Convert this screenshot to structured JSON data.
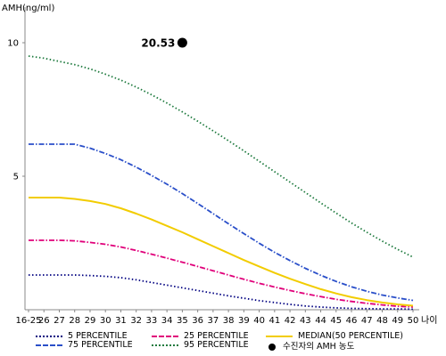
{
  "chart_data": {
    "type": "line",
    "ylabel": "AMH(ng/ml)",
    "xlabel": "나이",
    "categories": [
      "16-25",
      "26",
      "27",
      "28",
      "29",
      "30",
      "31",
      "32",
      "33",
      "34",
      "35",
      "36",
      "37",
      "38",
      "39",
      "40",
      "41",
      "42",
      "43",
      "44",
      "45",
      "46",
      "47",
      "48",
      "49",
      "50"
    ],
    "y_ticks": [
      "10",
      "5"
    ],
    "ylim": [
      0,
      11
    ],
    "grid": false,
    "legend_position": "bottom",
    "series": [
      {
        "name": "5 PERCENTILE",
        "color": "#000080",
        "dash": "dotted",
        "values": [
          1.3,
          1.3,
          1.3,
          1.3,
          1.28,
          1.25,
          1.2,
          1.12,
          1.02,
          0.92,
          0.82,
          0.72,
          0.62,
          0.52,
          0.43,
          0.34,
          0.27,
          0.2,
          0.14,
          0.1,
          0.07,
          0.05,
          0.04,
          0.03,
          0.03,
          0.02
        ]
      },
      {
        "name": "25 PERCENTILE",
        "color": "#e0007a",
        "dash": "dashdot",
        "values": [
          2.6,
          2.6,
          2.6,
          2.58,
          2.52,
          2.45,
          2.35,
          2.22,
          2.08,
          1.93,
          1.78,
          1.62,
          1.46,
          1.3,
          1.14,
          0.99,
          0.85,
          0.72,
          0.6,
          0.49,
          0.39,
          0.31,
          0.24,
          0.18,
          0.13,
          0.1
        ]
      },
      {
        "name": "MEDIAN(50 PERCENTILE)",
        "color": "#f2cc00",
        "dash": "solid",
        "values": [
          4.2,
          4.2,
          4.2,
          4.15,
          4.07,
          3.96,
          3.8,
          3.6,
          3.38,
          3.14,
          2.9,
          2.64,
          2.38,
          2.12,
          1.86,
          1.62,
          1.38,
          1.16,
          0.96,
          0.77,
          0.61,
          0.47,
          0.36,
          0.27,
          0.2,
          0.15
        ]
      },
      {
        "name": "75 PERCENTILE",
        "color": "#2a4fc9",
        "dash": "dashdot",
        "values": [
          6.2,
          6.2,
          6.2,
          6.2,
          6.05,
          5.85,
          5.62,
          5.34,
          5.03,
          4.7,
          4.35,
          3.98,
          3.6,
          3.22,
          2.85,
          2.49,
          2.15,
          1.84,
          1.55,
          1.29,
          1.06,
          0.86,
          0.69,
          0.55,
          0.44,
          0.35
        ]
      },
      {
        "name": "95 PERCENTILE",
        "color": "#1e7a3e",
        "dash": "dotted",
        "values": [
          9.5,
          9.42,
          9.3,
          9.18,
          9.02,
          8.82,
          8.6,
          8.34,
          8.05,
          7.74,
          7.41,
          7.06,
          6.7,
          6.33,
          5.95,
          5.56,
          5.17,
          4.78,
          4.39,
          4.0,
          3.62,
          3.25,
          2.9,
          2.57,
          2.26,
          1.97
        ]
      }
    ],
    "marker": {
      "name": "수진자의 AMH 농도",
      "x": "35",
      "y": 10.0,
      "label": "20.53"
    }
  }
}
